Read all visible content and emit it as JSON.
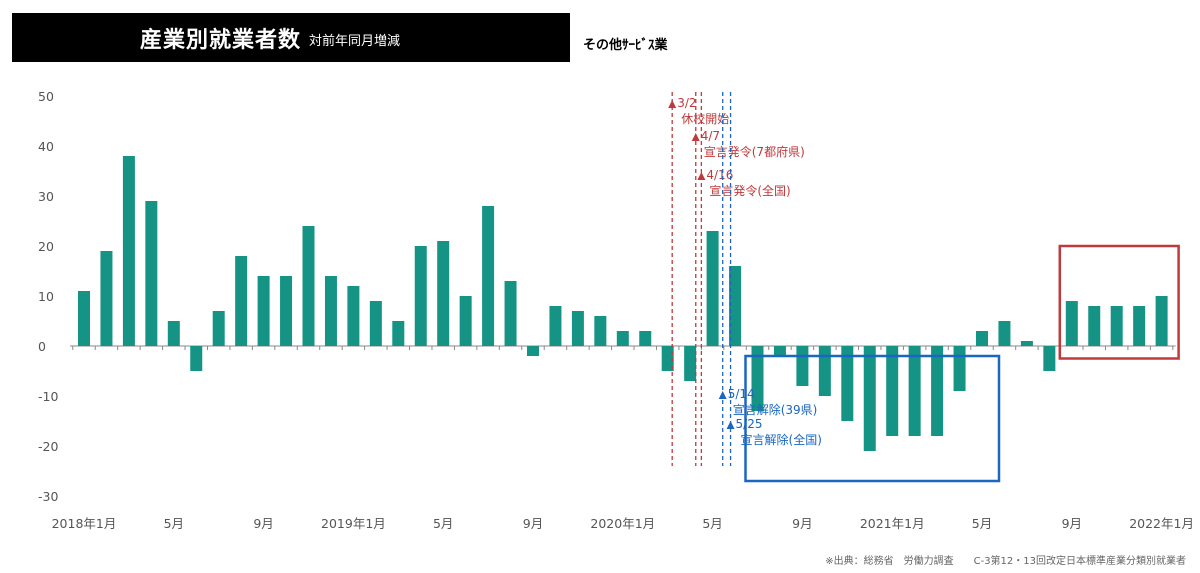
{
  "header": {
    "title": "産業別就業者数",
    "subtitle": "対前年同月増減",
    "category": "その他ｻｰﾋﾞｽ業"
  },
  "source_note": "※出典：総務省　労働力調査　　C-3第12・13回改定日本標準産業分類別就業者",
  "colors": {
    "bar": "#159384",
    "red": "#c0393b",
    "blue": "#1a66c0",
    "axis": "#888888"
  },
  "chart_data": {
    "type": "bar",
    "title": "産業別就業者数 対前年同月増減",
    "series_name": "その他ｻｰﾋﾞｽ業",
    "ylim": [
      -30,
      50
    ],
    "yticks": [
      50,
      40,
      30,
      20,
      10,
      0,
      -10,
      -20,
      -30
    ],
    "ytick_labels": [
      "50",
      "40",
      "30",
      "20",
      "10",
      "0",
      "-10",
      "-20",
      "-30"
    ],
    "categories": [
      "2018-01",
      "2018-02",
      "2018-03",
      "2018-04",
      "2018-05",
      "2018-06",
      "2018-07",
      "2018-08",
      "2018-09",
      "2018-10",
      "2018-11",
      "2018-12",
      "2019-01",
      "2019-02",
      "2019-03",
      "2019-04",
      "2019-05",
      "2019-06",
      "2019-07",
      "2019-08",
      "2019-09",
      "2019-10",
      "2019-11",
      "2019-12",
      "2020-01",
      "2020-02",
      "2020-03",
      "2020-04",
      "2020-05",
      "2020-06",
      "2020-07",
      "2020-08",
      "2020-09",
      "2020-10",
      "2020-11",
      "2020-12",
      "2021-01",
      "2021-02",
      "2021-03",
      "2021-04",
      "2021-05",
      "2021-06",
      "2021-07",
      "2021-08",
      "2021-09",
      "2021-10",
      "2021-11",
      "2021-12",
      "2022-01"
    ],
    "values": [
      11,
      19,
      38,
      29,
      5,
      -5,
      7,
      18,
      14,
      14,
      24,
      14,
      12,
      9,
      5,
      20,
      21,
      10,
      28,
      13,
      -2,
      8,
      7,
      6,
      3,
      3,
      -5,
      -7,
      23,
      16,
      -13,
      -2,
      -8,
      -10,
      -15,
      -21,
      -18,
      -18,
      -18,
      -9,
      3,
      5,
      1,
      -5,
      9,
      8,
      8,
      8,
      10
    ],
    "x_tick_labels": [
      {
        "index": 0,
        "label": "2018年1月"
      },
      {
        "index": 4,
        "label": "5月"
      },
      {
        "index": 8,
        "label": "9月"
      },
      {
        "index": 12,
        "label": "2019年1月"
      },
      {
        "index": 16,
        "label": "5月"
      },
      {
        "index": 20,
        "label": "9月"
      },
      {
        "index": 24,
        "label": "2020年1月"
      },
      {
        "index": 28,
        "label": "5月"
      },
      {
        "index": 32,
        "label": "9月"
      },
      {
        "index": 36,
        "label": "2021年1月"
      },
      {
        "index": 40,
        "label": "5月"
      },
      {
        "index": 44,
        "label": "9月"
      },
      {
        "index": 48,
        "label": "2022年1月"
      }
    ],
    "events": [
      {
        "name": "school-closure",
        "color": "red",
        "date": "3/2",
        "label": "休校開始",
        "month_pos": 26.2
      },
      {
        "name": "emergency-7",
        "color": "red",
        "date": "4/7",
        "label": "宣言発令(7都府県)",
        "month_pos": 27.25
      },
      {
        "name": "emergency-all",
        "color": "red",
        "date": "4/16",
        "label": "宣言発令(全国)",
        "month_pos": 27.5
      },
      {
        "name": "lift-39",
        "color": "blue",
        "date": "5/14",
        "label": "宣言解除(39県)",
        "month_pos": 28.45
      },
      {
        "name": "lift-all",
        "color": "blue",
        "date": "5/25",
        "label": "宣言解除(全国)",
        "month_pos": 28.8
      }
    ],
    "highlights": [
      {
        "name": "decline-period-box",
        "color": "blue",
        "from_month": 30,
        "to_month": 40,
        "y_top": -2,
        "y_bottom": -27
      },
      {
        "name": "recovery-period-box",
        "color": "red",
        "from_month": 44,
        "to_month": 48,
        "y_top": 20,
        "y_bottom": -2.5
      }
    ]
  }
}
